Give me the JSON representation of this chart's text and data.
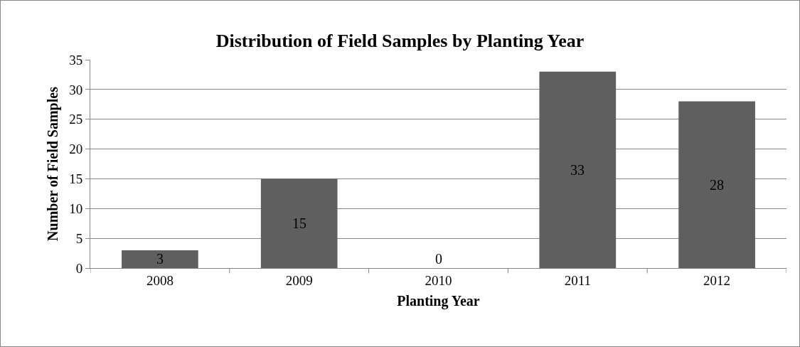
{
  "chart_data": {
    "type": "bar",
    "title": "Distribution of Field Samples by Planting Year",
    "xlabel": "Planting Year",
    "ylabel": "Number of Field Samples",
    "categories": [
      "2008",
      "2009",
      "2010",
      "2011",
      "2012"
    ],
    "values": [
      3,
      15,
      0,
      33,
      28
    ],
    "color": "#5f5f5f",
    "ylim": [
      0,
      35
    ],
    "yticks": [
      0,
      5,
      10,
      15,
      20,
      25,
      30,
      35
    ],
    "grid": "y",
    "data_labels": true,
    "legend": false
  }
}
